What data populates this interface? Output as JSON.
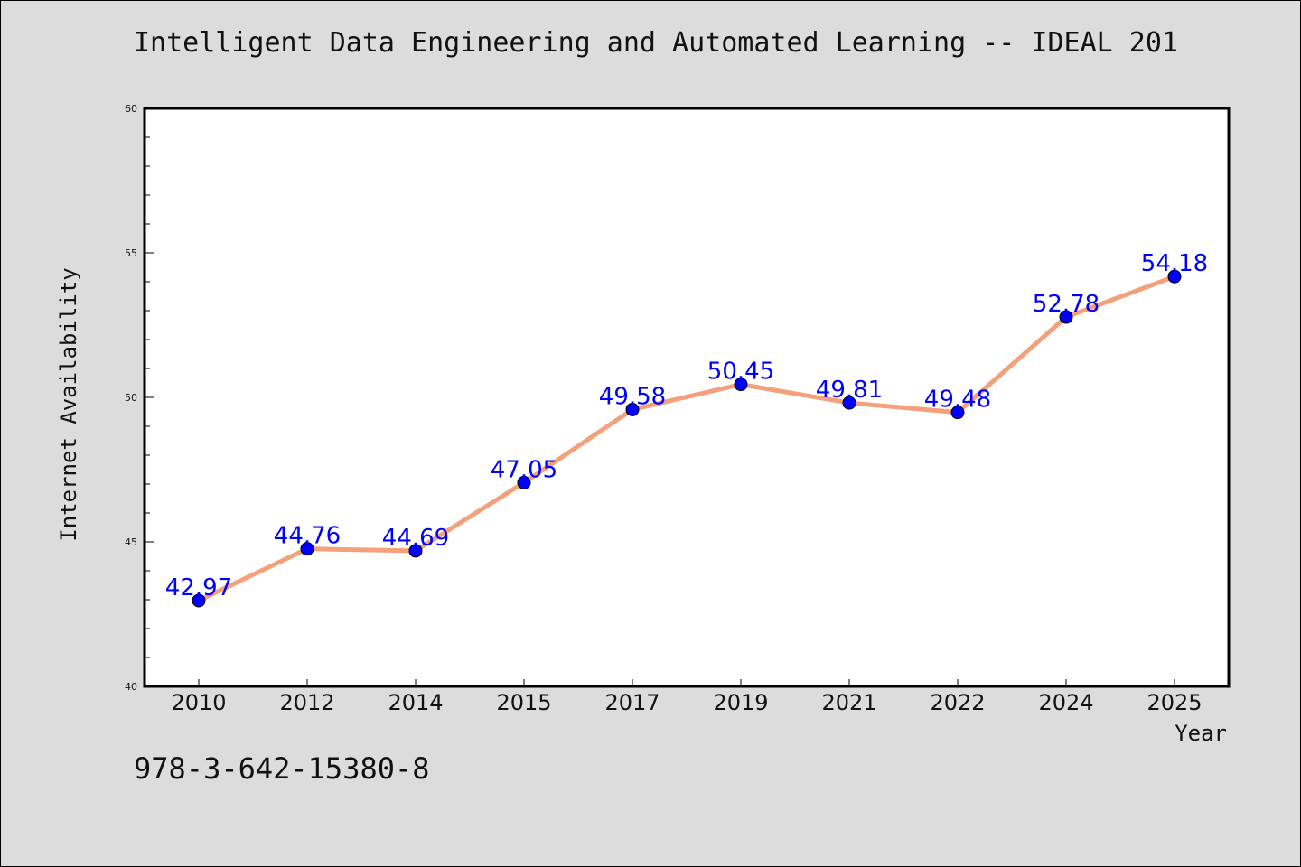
{
  "header": {
    "title": "Intelligent Data Engineering and Automated Learning -- IDEAL 201"
  },
  "footer": {
    "isbn": "978-3-642-15380-8"
  },
  "chart_data": {
    "type": "line",
    "categories": [
      "2010",
      "2012",
      "2014",
      "2015",
      "2017",
      "2019",
      "2021",
      "2022",
      "2024",
      "2025"
    ],
    "series": [
      {
        "values": [
          42.97,
          44.76,
          44.69,
          47.05,
          49.58,
          50.45,
          49.81,
          49.48,
          52.78,
          54.18
        ],
        "data_labels": [
          "42.97",
          "44.76",
          "44.69",
          "47.05",
          "49.58",
          "50.45",
          "49.81",
          "49.48",
          "52.78",
          "54.18"
        ],
        "line_color": "#f4a07a",
        "marker_color": "#0000ff"
      }
    ],
    "title": "Intelligent Data Engineering and Automated Learning -- IDEAL 201",
    "xlabel": "Year",
    "ylabel": "Internet Availability",
    "ylim": [
      40,
      60
    ],
    "yticks": [
      "40",
      "45",
      "50",
      "55",
      "60"
    ],
    "grid": false,
    "legend": "none"
  }
}
